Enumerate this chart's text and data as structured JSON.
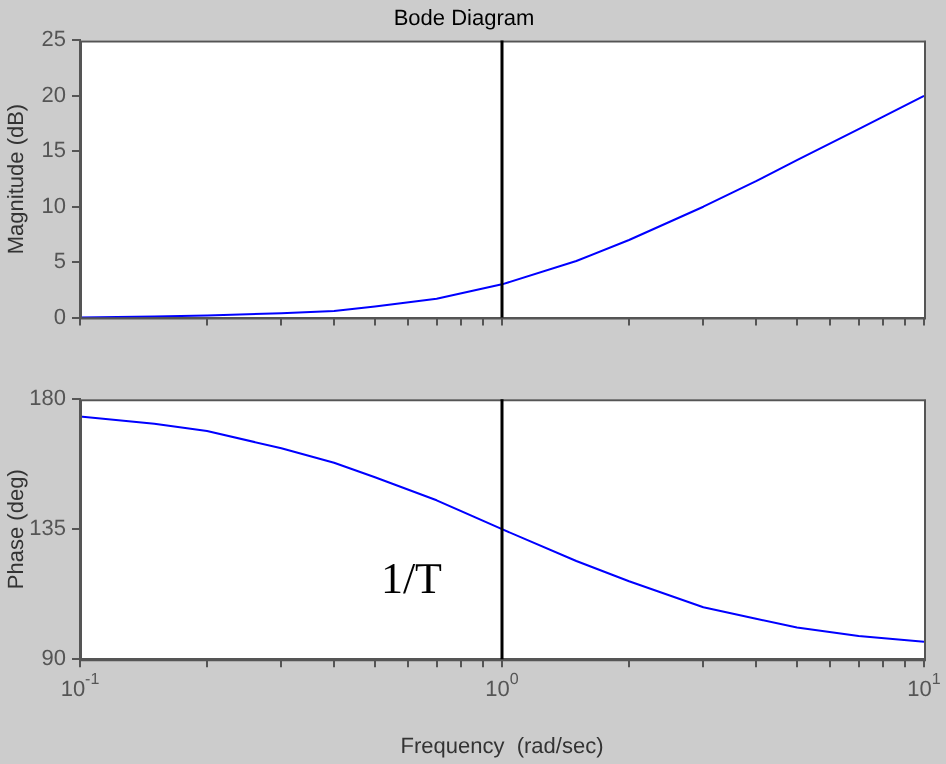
{
  "chart_data": [
    {
      "type": "line",
      "title": "Bode Diagram",
      "ylabel": "Magnitude (dB)",
      "log": "x",
      "marker": "none",
      "tick_labels": "y",
      "x": [
        0.1,
        0.15,
        0.2,
        0.3,
        0.4,
        0.5,
        0.7,
        1,
        1.5,
        2,
        3,
        4,
        5,
        7,
        10
      ],
      "series": [
        {
          "color": "#0000ff",
          "values": [
            0,
            0.1,
            0.2,
            0.4,
            0.6,
            1,
            1.7,
            3,
            5.1,
            7,
            10,
            12.3,
            14.2,
            17,
            20
          ]
        }
      ],
      "xlim": [
        0.1,
        10
      ],
      "xticks": [
        {
          "value": 0.1,
          "label": null
        },
        {
          "value": 0.2,
          "label": null
        },
        {
          "value": 0.3,
          "label": null
        },
        {
          "value": 0.4,
          "label": null
        },
        {
          "value": 0.5,
          "label": null
        },
        {
          "value": 0.6,
          "label": null
        },
        {
          "value": 0.7,
          "label": null
        },
        {
          "value": 0.8,
          "label": null
        },
        {
          "value": 0.9,
          "label": null
        },
        {
          "value": 1,
          "label": null
        },
        {
          "value": 2,
          "label": null
        },
        {
          "value": 3,
          "label": null
        },
        {
          "value": 4,
          "label": null
        },
        {
          "value": 5,
          "label": null
        },
        {
          "value": 6,
          "label": null
        },
        {
          "value": 7,
          "label": null
        },
        {
          "value": 8,
          "label": null
        },
        {
          "value": 9,
          "label": null
        },
        {
          "value": 10,
          "label": null
        }
      ],
      "ylim": [
        0,
        25
      ],
      "yticks": [
        0,
        5,
        10,
        15,
        20,
        25
      ],
      "ref_lines": [
        {
          "axis": "x",
          "value": 1,
          "color": "#000000"
        }
      ]
    },
    {
      "type": "line",
      "xlabel": "Frequency  (rad/sec)",
      "ylabel": "Phase (deg)",
      "log": "x",
      "marker": "none",
      "x": [
        0.1,
        0.15,
        0.2,
        0.3,
        0.4,
        0.5,
        0.7,
        1,
        1.5,
        2,
        3,
        4,
        5,
        7,
        10
      ],
      "series": [
        {
          "color": "#0000ff",
          "values": [
            174,
            171.5,
            169,
            163,
            158,
            153,
            145,
            135,
            124,
            117,
            108,
            104,
            101,
            98,
            96
          ]
        }
      ],
      "xlim": [
        0.1,
        10
      ],
      "xticks": [
        {
          "value": 0.1,
          "label": "10$^{-1}$"
        },
        {
          "value": 0.2,
          "label": null
        },
        {
          "value": 0.3,
          "label": null
        },
        {
          "value": 0.4,
          "label": null
        },
        {
          "value": 0.5,
          "label": null
        },
        {
          "value": 0.6,
          "label": null
        },
        {
          "value": 0.7,
          "label": null
        },
        {
          "value": 0.8,
          "label": null
        },
        {
          "value": 0.9,
          "label": null
        },
        {
          "value": 1,
          "label": "10$^{0}$"
        },
        {
          "value": 2,
          "label": null
        },
        {
          "value": 3,
          "label": null
        },
        {
          "value": 4,
          "label": null
        },
        {
          "value": 5,
          "label": null
        },
        {
          "value": 6,
          "label": null
        },
        {
          "value": 7,
          "label": null
        },
        {
          "value": 8,
          "label": null
        },
        {
          "value": 9,
          "label": null
        },
        {
          "value": 10,
          "label": "10$^{1}$"
        }
      ],
      "ylim": [
        90,
        180
      ],
      "yticks": [
        90,
        135,
        180
      ],
      "ref_lines": [
        {
          "axis": "x",
          "value": 1,
          "label": "1/T",
          "color": "#000000"
        }
      ]
    }
  ]
}
